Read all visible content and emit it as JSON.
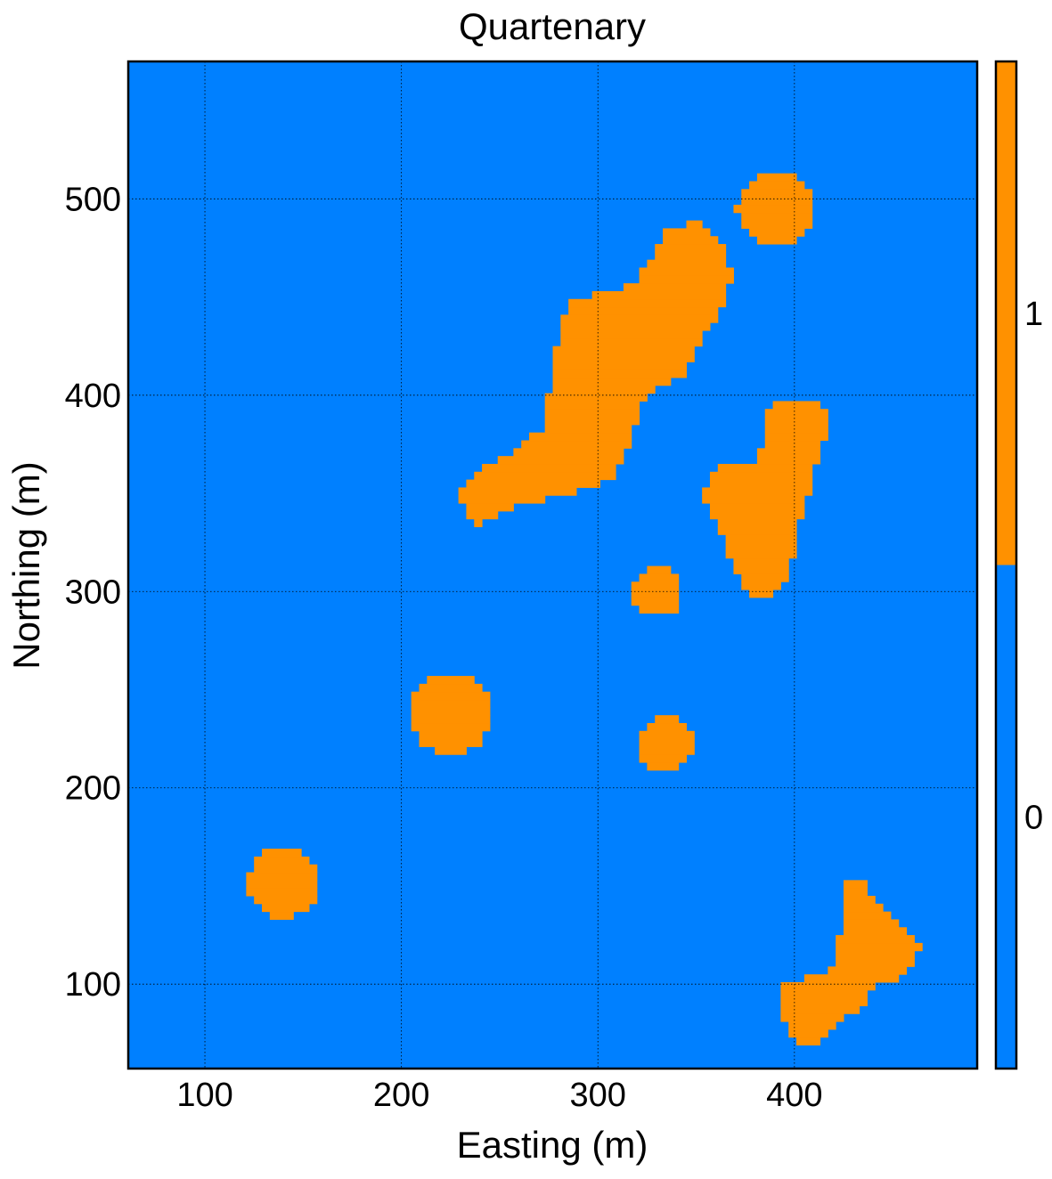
{
  "chart_data": {
    "type": "heatmap",
    "title": "Quartenary",
    "xlabel": "Easting (m)",
    "ylabel": "Northing (m)",
    "xlim": [
      61,
      493
    ],
    "ylim": [
      57,
      570
    ],
    "xticks": [
      100,
      200,
      300,
      400
    ],
    "yticks": [
      100,
      200,
      300,
      400,
      500
    ],
    "grid": true,
    "cell_size": 4,
    "categories": [
      {
        "value": 0,
        "label": "0",
        "color": "#0080ff"
      },
      {
        "value": 1,
        "label": "1",
        "color": "#ff9100"
      }
    ],
    "colorbar": {
      "ticks": [
        {
          "label": "0",
          "value": 0
        },
        {
          "label": "1",
          "value": 1
        }
      ],
      "boundary": 0.5
    },
    "units": [
      {
        "name": "circle-140-152",
        "type": "circle",
        "cx": 140,
        "cy": 152,
        "r": 18
      },
      {
        "name": "circle-225-238",
        "type": "circle",
        "cx": 225,
        "cy": 238,
        "r": 21
      },
      {
        "name": "circle-334-222",
        "type": "circle",
        "cx": 334,
        "cy": 222,
        "r": 14
      },
      {
        "name": "circle-330-300",
        "type": "circle",
        "cx": 330,
        "cy": 300,
        "r": 13
      },
      {
        "name": "circle-390-495",
        "type": "circle",
        "cx": 390,
        "cy": 495,
        "r": 19
      },
      {
        "name": "elongated-body-center",
        "type": "polygon",
        "points": [
          [
            236,
            333
          ],
          [
            250,
            340
          ],
          [
            268,
            346
          ],
          [
            290,
            351
          ],
          [
            305,
            356
          ],
          [
            313,
            366
          ],
          [
            320,
            386
          ],
          [
            324,
            400
          ],
          [
            342,
            409
          ],
          [
            352,
            428
          ],
          [
            364,
            446
          ],
          [
            368,
            458
          ],
          [
            366,
            472
          ],
          [
            352,
            488
          ],
          [
            336,
            486
          ],
          [
            327,
            470
          ],
          [
            318,
            456
          ],
          [
            302,
            452
          ],
          [
            287,
            449
          ],
          [
            281,
            434
          ],
          [
            276,
            408
          ],
          [
            272,
            383
          ],
          [
            265,
            378
          ],
          [
            257,
            370
          ],
          [
            237,
            360
          ],
          [
            229,
            349
          ]
        ]
      },
      {
        "name": "elongated-body-right",
        "type": "polygon",
        "points": [
          [
            377,
            298
          ],
          [
            389,
            299
          ],
          [
            398,
            309
          ],
          [
            400,
            328
          ],
          [
            408,
            353
          ],
          [
            413,
            370
          ],
          [
            418,
            386
          ],
          [
            411,
            398
          ],
          [
            395,
            398
          ],
          [
            385,
            392
          ],
          [
            384,
            376
          ],
          [
            380,
            367
          ],
          [
            360,
            363
          ],
          [
            353,
            350
          ],
          [
            360,
            336
          ],
          [
            366,
            322
          ],
          [
            370,
            309
          ]
        ]
      },
      {
        "name": "elongated-body-bottom-right",
        "type": "polygon",
        "points": [
          [
            404,
            70
          ],
          [
            413,
            71
          ],
          [
            420,
            80
          ],
          [
            436,
            89
          ],
          [
            440,
            98
          ],
          [
            453,
            103
          ],
          [
            460,
            110
          ],
          [
            464,
            118
          ],
          [
            458,
            126
          ],
          [
            449,
            133
          ],
          [
            440,
            143
          ],
          [
            434,
            155
          ],
          [
            426,
            151
          ],
          [
            424,
            142
          ],
          [
            423,
            126
          ],
          [
            422,
            108
          ],
          [
            412,
            105
          ],
          [
            395,
            100
          ],
          [
            392,
            86
          ],
          [
            397,
            75
          ]
        ]
      }
    ]
  }
}
